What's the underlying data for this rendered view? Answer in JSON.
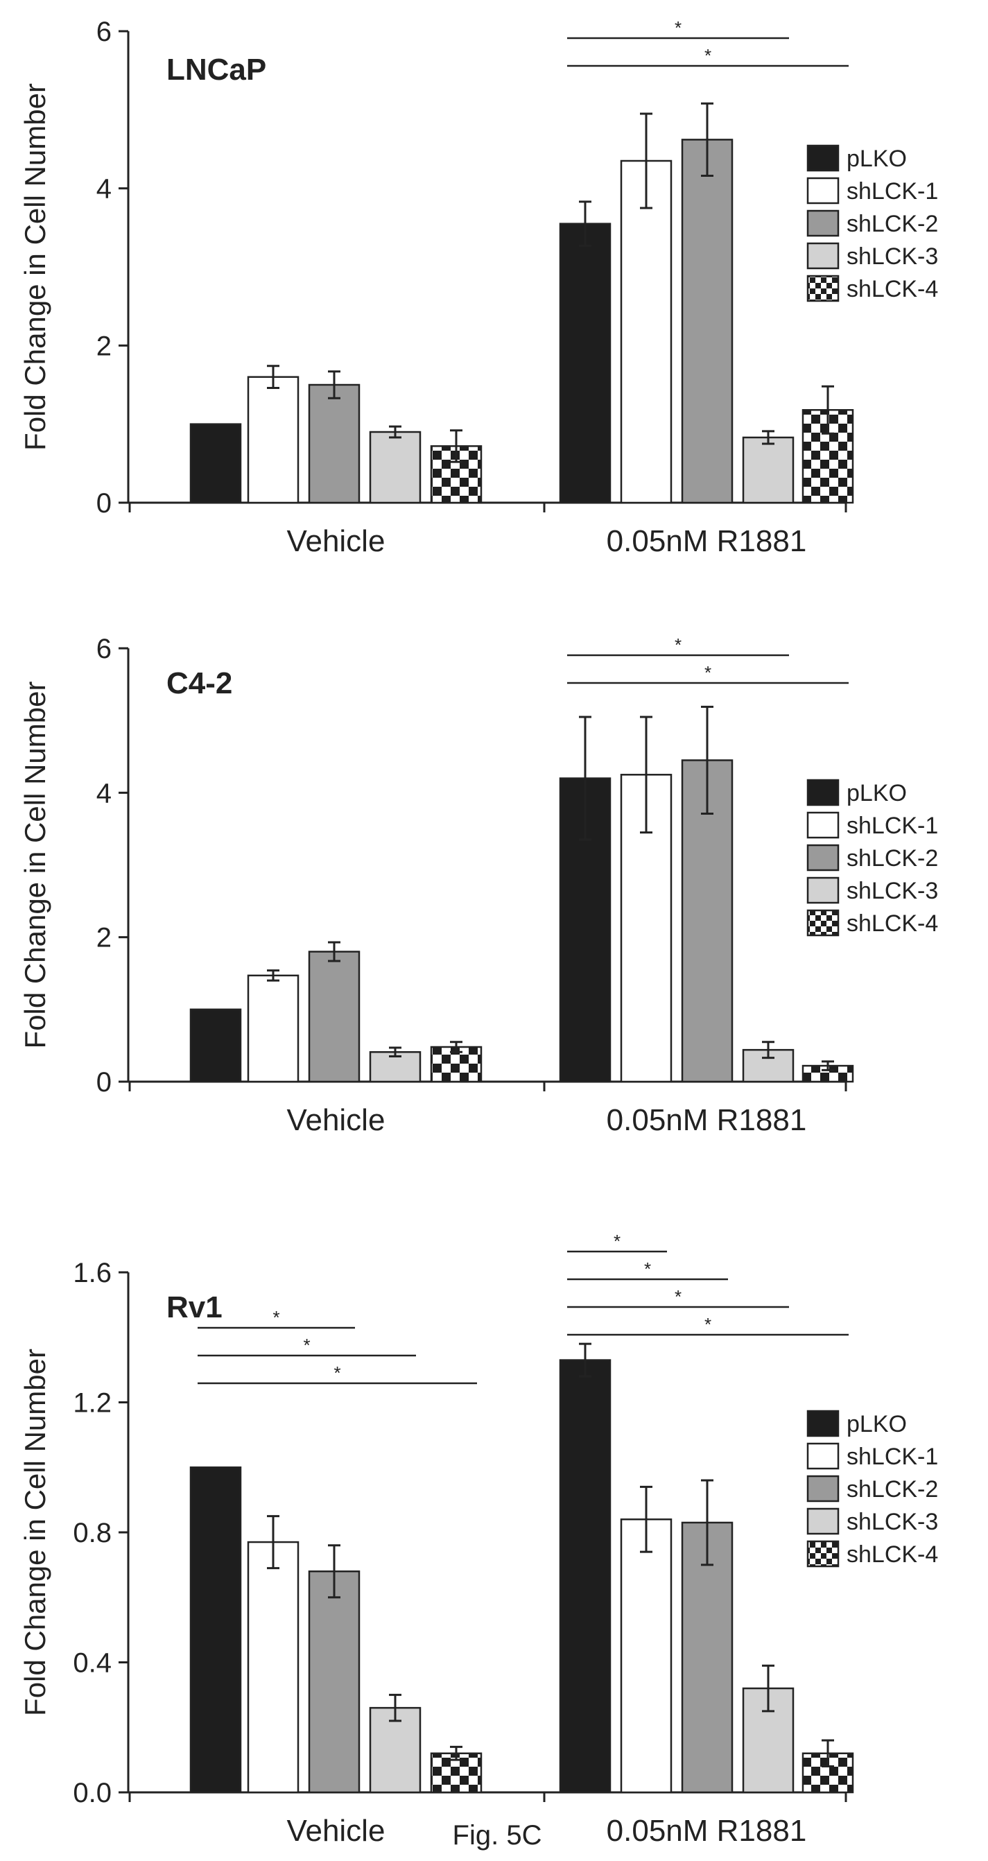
{
  "caption": "Fig. 5C",
  "colors": {
    "pLKO": "#1e1e1e",
    "shLCK-1": "#ffffff",
    "shLCK-2": "#9a9a9a",
    "shLCK-3": "#d2d2d2",
    "shLCK-4": "checker"
  },
  "chart_data": [
    {
      "type": "bar",
      "title": "LNCaP",
      "ylabel": "Fold Change in Cell Number",
      "xlabel": "",
      "ylim": [
        0,
        6
      ],
      "yticks": [
        "0",
        "2",
        "4",
        "6"
      ],
      "categories": [
        "Vehicle",
        "0.05nM R1881"
      ],
      "legend_position": "right",
      "series": [
        {
          "name": "pLKO",
          "values": [
            1.0,
            3.55
          ],
          "errors": [
            0,
            0.28
          ]
        },
        {
          "name": "shLCK-1",
          "values": [
            1.6,
            4.35
          ],
          "errors": [
            0.14,
            0.6
          ]
        },
        {
          "name": "shLCK-2",
          "values": [
            1.5,
            4.62
          ],
          "errors": [
            0.17,
            0.46
          ]
        },
        {
          "name": "shLCK-3",
          "values": [
            0.9,
            0.83
          ],
          "errors": [
            0.07,
            0.08
          ]
        },
        {
          "name": "shLCK-4",
          "values": [
            0.72,
            1.18
          ],
          "errors": [
            0.2,
            0.3
          ]
        }
      ],
      "significance": [
        {
          "category": 1,
          "from": 0,
          "to": 3,
          "label": "*"
        },
        {
          "category": 1,
          "from": 0,
          "to": 4,
          "label": "*"
        }
      ]
    },
    {
      "type": "bar",
      "title": "C4-2",
      "ylabel": "Fold Change in Cell Number",
      "xlabel": "",
      "ylim": [
        0,
        6
      ],
      "yticks": [
        "0",
        "2",
        "4",
        "6"
      ],
      "categories": [
        "Vehicle",
        "0.05nM R1881"
      ],
      "legend_position": "right",
      "series": [
        {
          "name": "pLKO",
          "values": [
            1.0,
            4.2
          ],
          "errors": [
            0,
            0.85
          ]
        },
        {
          "name": "shLCK-1",
          "values": [
            1.47,
            4.25
          ],
          "errors": [
            0.07,
            0.8
          ]
        },
        {
          "name": "shLCK-2",
          "values": [
            1.8,
            4.45
          ],
          "errors": [
            0.13,
            0.74
          ]
        },
        {
          "name": "shLCK-3",
          "values": [
            0.41,
            0.44
          ],
          "errors": [
            0.06,
            0.11
          ]
        },
        {
          "name": "shLCK-4",
          "values": [
            0.48,
            0.22
          ],
          "errors": [
            0.07,
            0.06
          ]
        }
      ],
      "significance": [
        {
          "category": 1,
          "from": 0,
          "to": 3,
          "label": "*"
        },
        {
          "category": 1,
          "from": 0,
          "to": 4,
          "label": "*"
        }
      ]
    },
    {
      "type": "bar",
      "title": "Rv1",
      "ylabel": "Fold Change in Cell Number",
      "xlabel": "",
      "ylim": [
        0,
        1.6
      ],
      "yticks": [
        "0.0",
        "0.4",
        "0.8",
        "1.2",
        "1.6"
      ],
      "categories": [
        "Vehicle",
        "0.05nM R1881"
      ],
      "legend_position": "right",
      "series": [
        {
          "name": "pLKO",
          "values": [
            1.0,
            1.33
          ],
          "errors": [
            0,
            0.05
          ]
        },
        {
          "name": "shLCK-1",
          "values": [
            0.77,
            0.84
          ],
          "errors": [
            0.08,
            0.1
          ]
        },
        {
          "name": "shLCK-2",
          "values": [
            0.68,
            0.83
          ],
          "errors": [
            0.08,
            0.13
          ]
        },
        {
          "name": "shLCK-3",
          "values": [
            0.26,
            0.32
          ],
          "errors": [
            0.04,
            0.07
          ]
        },
        {
          "name": "shLCK-4",
          "values": [
            0.12,
            0.12
          ],
          "errors": [
            0.02,
            0.04
          ]
        }
      ],
      "significance": [
        {
          "category": 0,
          "from": 0,
          "to": 2,
          "label": "*"
        },
        {
          "category": 0,
          "from": 0,
          "to": 3,
          "label": "*"
        },
        {
          "category": 0,
          "from": 0,
          "to": 4,
          "label": "*"
        },
        {
          "category": 1,
          "from": 0,
          "to": 1,
          "label": "*"
        },
        {
          "category": 1,
          "from": 0,
          "to": 2,
          "label": "*"
        },
        {
          "category": 1,
          "from": 0,
          "to": 3,
          "label": "*"
        },
        {
          "category": 1,
          "from": 0,
          "to": 4,
          "label": "*"
        }
      ]
    }
  ]
}
